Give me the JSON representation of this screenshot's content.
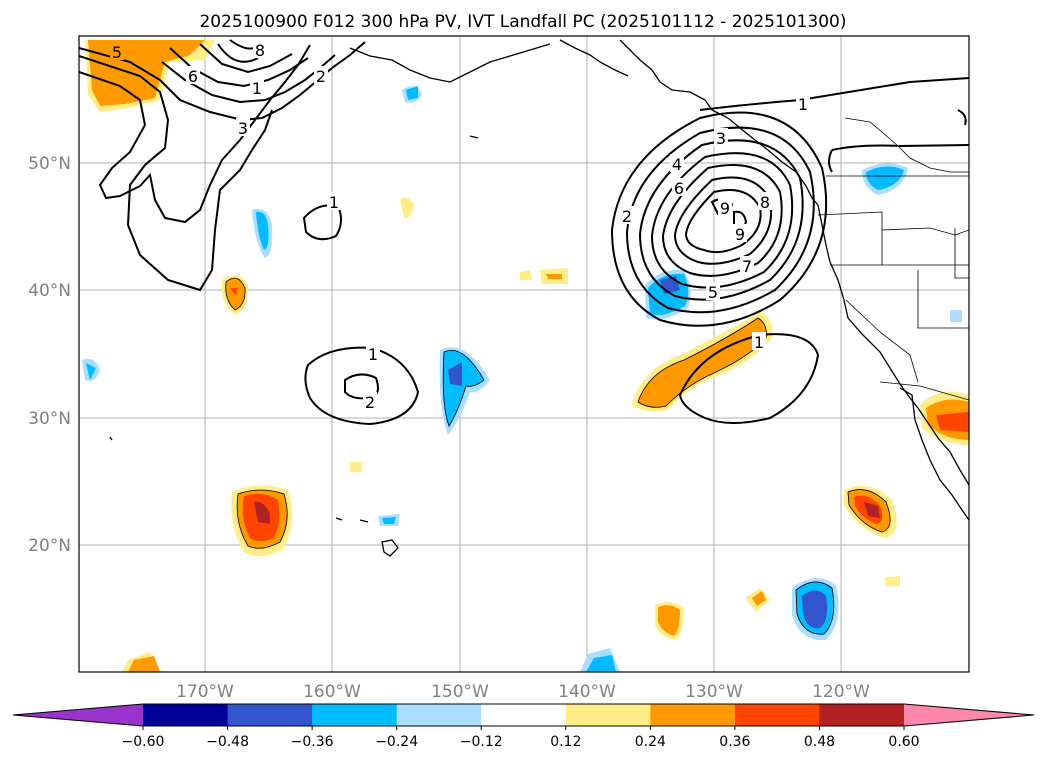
{
  "title": "2025100900 F012 300 hPa PV, IVT Landfall PC (2025101112 - 2025101300)",
  "lat_labels": [
    "50°N",
    "40°N",
    "30°N",
    "20°N"
  ],
  "lon_labels": [
    "170°W",
    "160°W",
    "150°W",
    "140°W",
    "130°W",
    "120°W"
  ],
  "colorbar": {
    "ticks": [
      "−0.60",
      "−0.48",
      "−0.36",
      "−0.24",
      "−0.12",
      "0.12",
      "0.24",
      "0.36",
      "0.48",
      "0.60"
    ],
    "colors": [
      "#9933cc",
      "#000099",
      "#3355cc",
      "#00bbff",
      "#aaddff",
      "#ffffff",
      "#ffee88",
      "#ff9900",
      "#ff4400",
      "#b22222",
      "#ff88aa"
    ]
  },
  "contour_labels": {
    "north_ridge": [
      "5",
      "8",
      "6",
      "1",
      "2",
      "3"
    ],
    "center_small": "1",
    "west_low_outer": "1",
    "west_low_inner": "2",
    "main_low": [
      "3",
      "4",
      "6",
      "2",
      "9",
      "9",
      "8",
      "7",
      "5",
      "1"
    ],
    "southeast_low": "1"
  }
}
